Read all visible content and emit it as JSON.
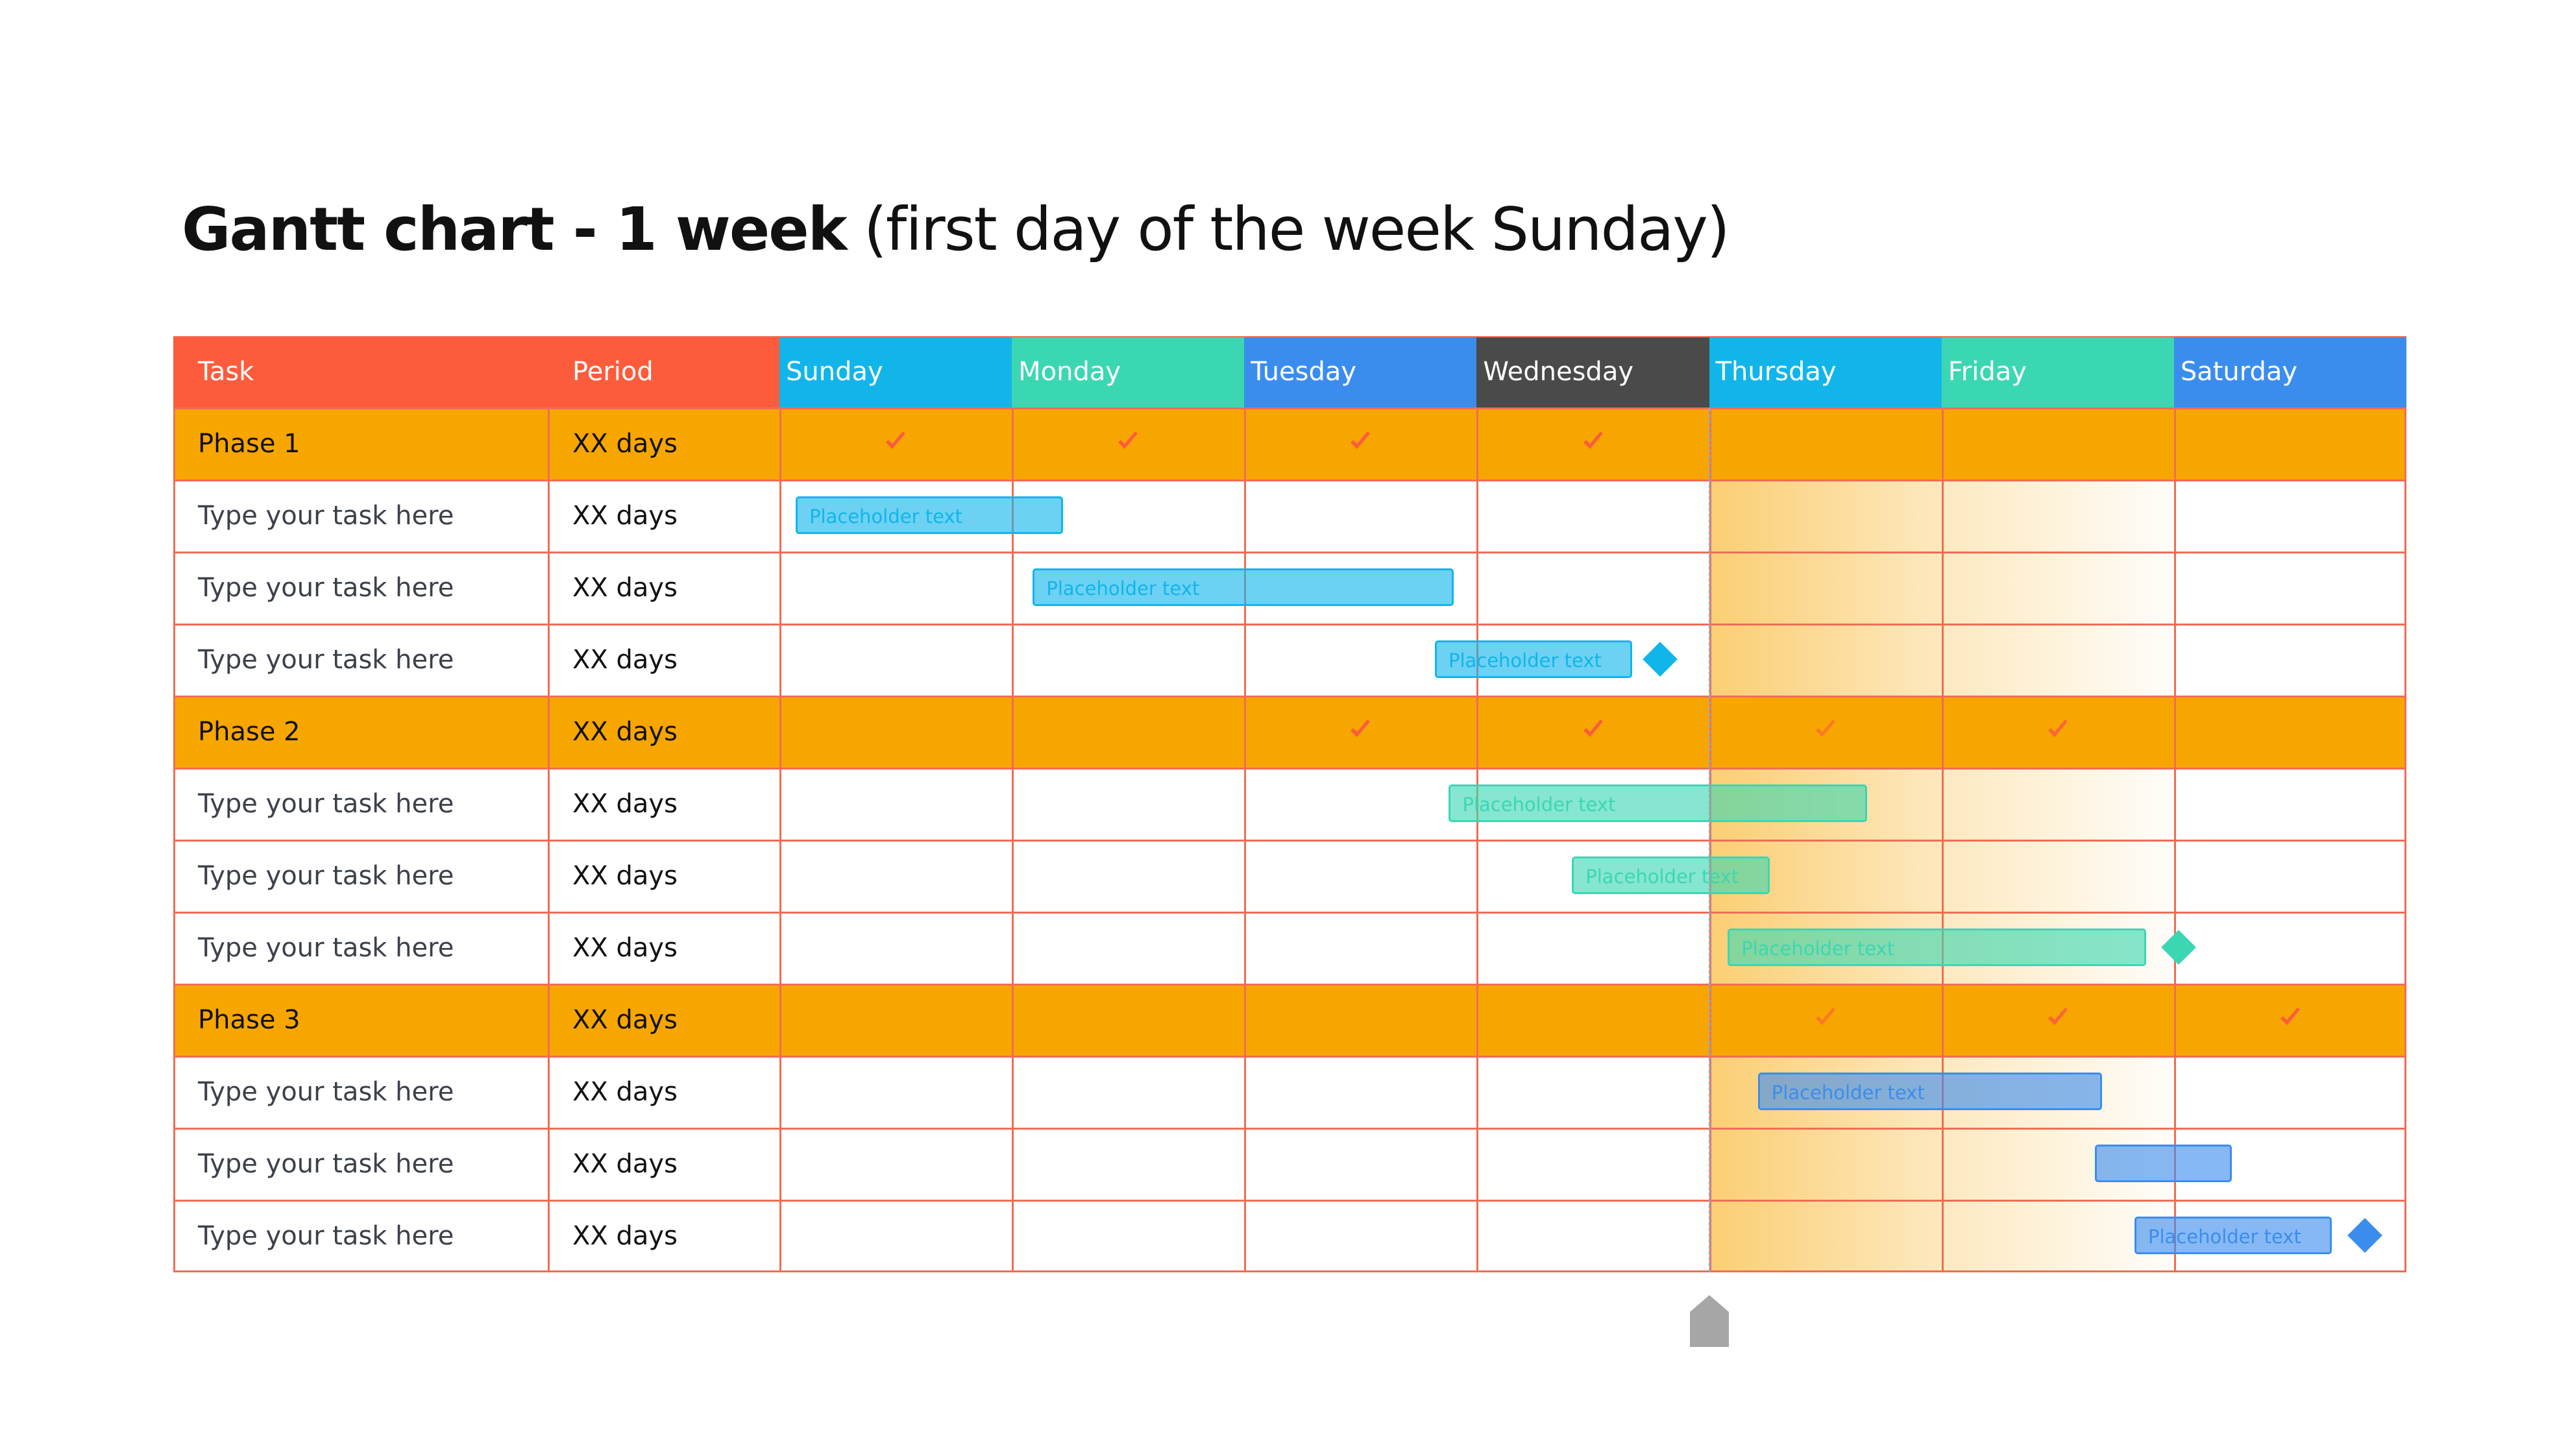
{
  "title_prefix": "Gantt chart - 1 week",
  "title_suffix": " (first day of the week Sunday)",
  "colors": {
    "task_header": "#fd5c3c",
    "phase_row": "#f7a600",
    "grid": "#ef6e55",
    "check": "#fd5c3c",
    "today_marker": "#a6a6a6",
    "highlight": "#f7a600"
  },
  "header": {
    "task": "Task",
    "period": "Period"
  },
  "days": [
    {
      "label": "Sunday",
      "color": "#12b5ea"
    },
    {
      "label": "Monday",
      "color": "#3bd7b2"
    },
    {
      "label": "Tuesday",
      "color": "#3b8ded"
    },
    {
      "label": "Wednesday",
      "color": "#4a4a4a"
    },
    {
      "label": "Thursday",
      "color": "#12b5ea"
    },
    {
      "label": "Friday",
      "color": "#3bd7b2"
    },
    {
      "label": "Saturday",
      "color": "#3b8ded"
    }
  ],
  "chart_data": {
    "type": "gantt",
    "x_unit": "day",
    "current_day_marker": 4,
    "highlighted_days": [
      4,
      6
    ],
    "rows": [
      {
        "kind": "phase",
        "name": "Phase 1",
        "period": "XX days",
        "checks": [
          0,
          1,
          2,
          3
        ]
      },
      {
        "kind": "task",
        "name": "Type your task here",
        "period": "XX days",
        "bar": {
          "start": 0.07,
          "end": 1.22,
          "label": "Placeholder text",
          "color": "#12b5ea"
        }
      },
      {
        "kind": "task",
        "name": "Type your task here",
        "period": "XX days",
        "bar": {
          "start": 1.09,
          "end": 2.9,
          "label": "Placeholder text",
          "color": "#12b5ea"
        }
      },
      {
        "kind": "task",
        "name": "Type your task here",
        "period": "XX days",
        "bar": {
          "start": 2.82,
          "end": 3.67,
          "label": "Placeholder text",
          "color": "#12b5ea"
        },
        "milestone": {
          "day": 3.79,
          "color": "#12b5ea"
        }
      },
      {
        "kind": "phase",
        "name": "Phase 2",
        "period": "XX days",
        "checks": [
          2,
          3,
          4,
          5
        ]
      },
      {
        "kind": "task",
        "name": "Type your task here",
        "period": "XX days",
        "bar": {
          "start": 2.88,
          "end": 4.68,
          "label": "Placeholder text",
          "color": "#3bd7b2"
        }
      },
      {
        "kind": "task",
        "name": "Type your task here",
        "period": "XX days",
        "bar": {
          "start": 3.41,
          "end": 4.26,
          "label": "Placeholder text",
          "color": "#3bd7b2"
        }
      },
      {
        "kind": "task",
        "name": "Type your task here",
        "period": "XX days",
        "bar": {
          "start": 4.08,
          "end": 5.88,
          "label": "Placeholder text",
          "color": "#3bd7b2"
        },
        "milestone": {
          "day": 6.02,
          "color": "#3bd7b2"
        }
      },
      {
        "kind": "phase",
        "name": "Phase 3",
        "period": "XX days",
        "checks": [
          4,
          5,
          6
        ]
      },
      {
        "kind": "task",
        "name": "Type your task here",
        "period": "XX days",
        "bar": {
          "start": 4.21,
          "end": 5.69,
          "label": "Placeholder text",
          "color": "#3b8ded"
        }
      },
      {
        "kind": "task",
        "name": "Type your task here",
        "period": "XX days",
        "bar": {
          "start": 5.66,
          "end": 6.25,
          "label": "",
          "color": "#3b8ded"
        }
      },
      {
        "kind": "task",
        "name": "Type your task here",
        "period": "XX days",
        "bar": {
          "start": 5.83,
          "end": 6.68,
          "label": "Placeholder text",
          "color": "#3b8ded"
        },
        "milestone": {
          "day": 6.82,
          "color": "#3b8ded"
        }
      }
    ]
  }
}
